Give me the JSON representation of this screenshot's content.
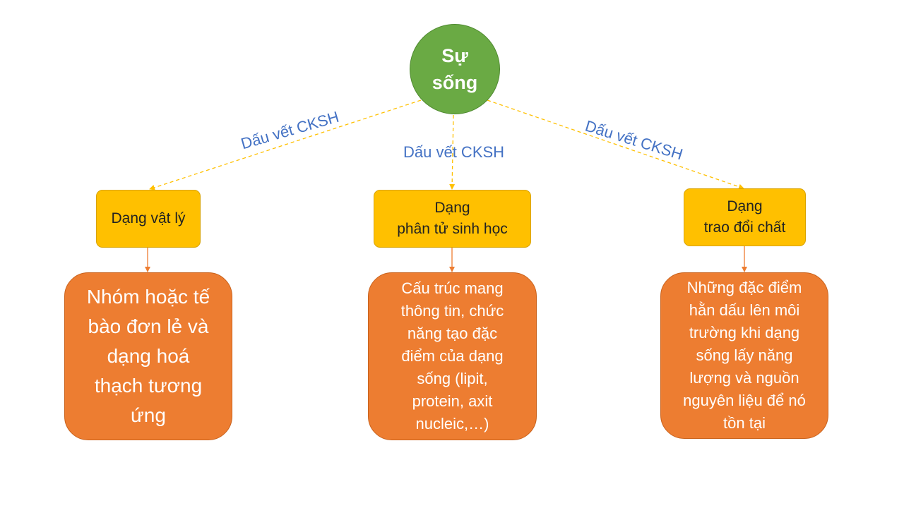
{
  "root": {
    "lines": [
      "Sự",
      "sống"
    ]
  },
  "edge_label": "Dấu vết CKSH",
  "categories": [
    {
      "lines": [
        "Dạng vật lý"
      ]
    },
    {
      "lines": [
        "Dạng",
        "phân tử sinh học"
      ]
    },
    {
      "lines": [
        "Dạng",
        "trao đổi chất"
      ]
    }
  ],
  "descriptions": [
    {
      "lines": [
        "Nhóm hoặc tế",
        "bào đơn lẻ và",
        "dạng hoá",
        "thạch tương",
        "ứng"
      ]
    },
    {
      "lines": [
        "Cấu trúc mang",
        "thông tin, chức",
        "năng tạo đặc",
        "điểm của dạng",
        "sống (lipit,",
        "protein, axit",
        "nucleic,…)"
      ]
    },
    {
      "lines": [
        "Những đặc điểm",
        "hằn dấu lên môi",
        "trường khi dạng",
        "sống lấy năng",
        "lượng và nguồn",
        "nguyên liệu để nó",
        "tồn tại"
      ]
    }
  ],
  "colors": {
    "root": "#6aaa44",
    "category": "#ffc000",
    "description": "#ed7d31",
    "edge_label": "#4472c4",
    "connector": "#ffc000",
    "arrow": "#ed7d31"
  }
}
